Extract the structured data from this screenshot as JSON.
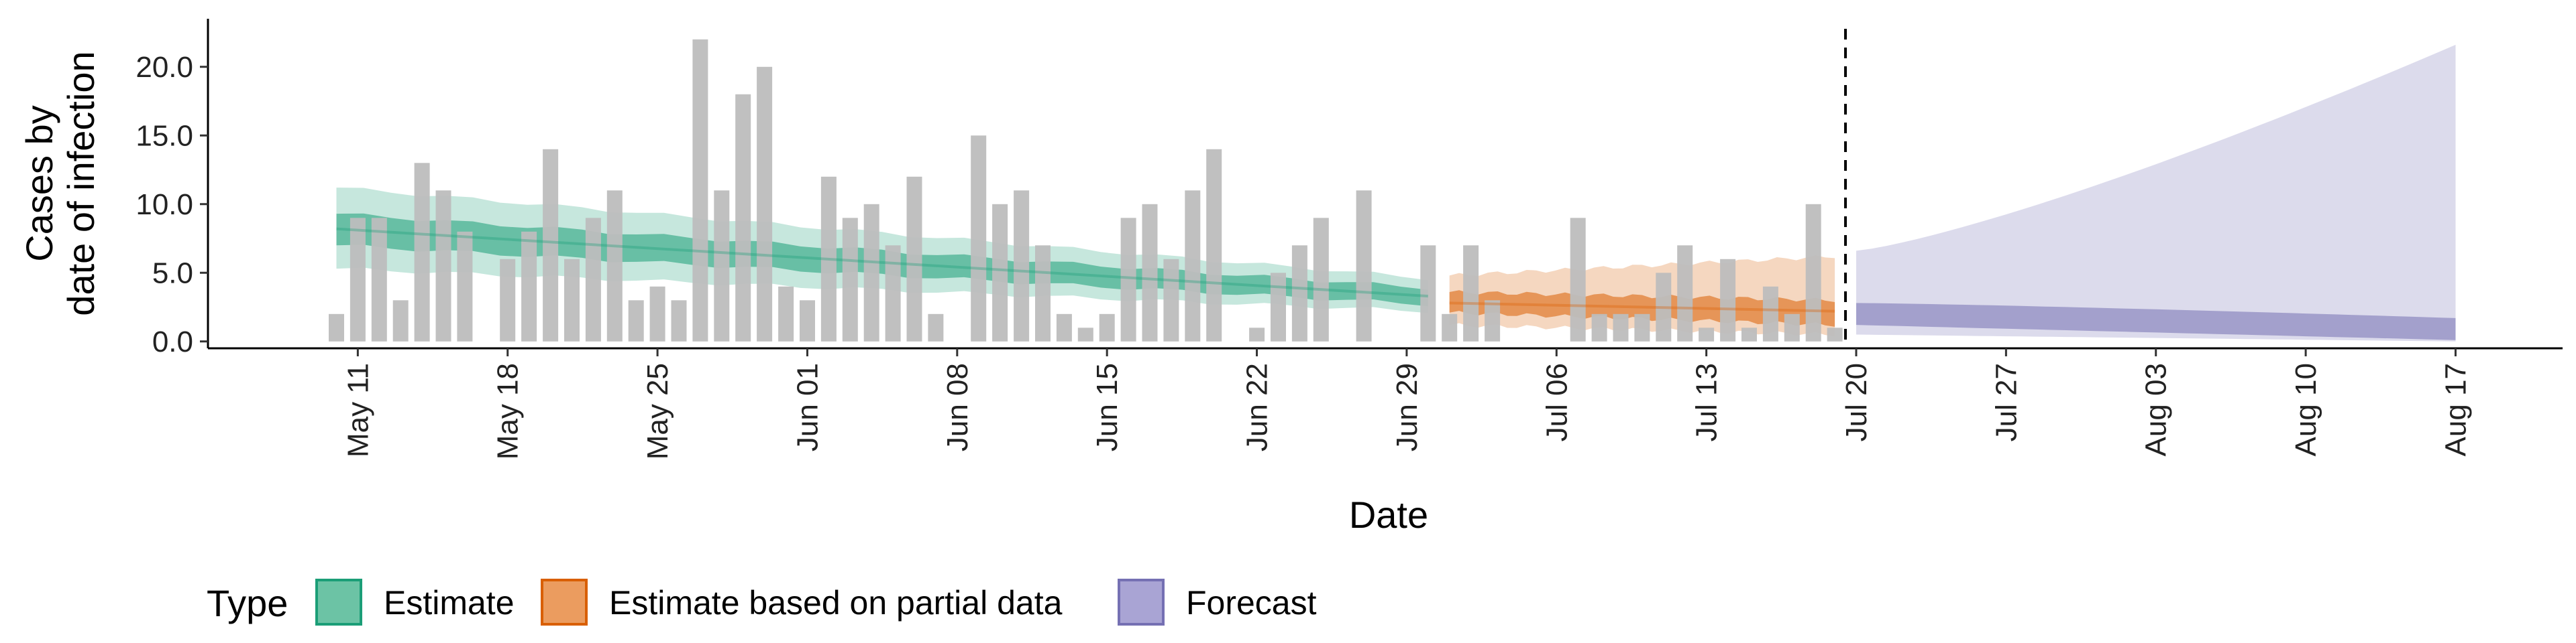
{
  "chart_data": {
    "type": "bar",
    "xlabel": "Date",
    "ylabel_lines": [
      "Cases by",
      "date of infection"
    ],
    "y_ticks": [
      "0.0",
      "5.0",
      "10.0",
      "15.0",
      "20.0"
    ],
    "y_tick_values": [
      0,
      5,
      10,
      15,
      20
    ],
    "ylim": [
      -0.5,
      23.5
    ],
    "xlim": [
      "2020-05-04",
      "2020-08-22"
    ],
    "x_ticks": [
      {
        "date": "2020-05-11",
        "label": "May 11"
      },
      {
        "date": "2020-05-18",
        "label": "May 18"
      },
      {
        "date": "2020-05-25",
        "label": "May 25"
      },
      {
        "date": "2020-06-01",
        "label": "Jun 01"
      },
      {
        "date": "2020-06-08",
        "label": "Jun 08"
      },
      {
        "date": "2020-06-15",
        "label": "Jun 15"
      },
      {
        "date": "2020-06-22",
        "label": "Jun 22"
      },
      {
        "date": "2020-06-29",
        "label": "Jun 29"
      },
      {
        "date": "2020-07-06",
        "label": "Jul 06"
      },
      {
        "date": "2020-07-13",
        "label": "Jul 13"
      },
      {
        "date": "2020-07-20",
        "label": "Jul 20"
      },
      {
        "date": "2020-07-27",
        "label": "Jul 27"
      },
      {
        "date": "2020-08-03",
        "label": "Aug 03"
      },
      {
        "date": "2020-08-10",
        "label": "Aug 10"
      },
      {
        "date": "2020-08-17",
        "label": "Aug 17"
      }
    ],
    "reported_cases": {
      "start_date": "2020-05-10",
      "values": [
        2,
        9,
        9,
        3,
        13,
        11,
        8,
        0,
        6,
        8,
        14,
        6,
        9,
        11,
        3,
        4,
        3,
        22,
        11,
        18,
        20,
        4,
        3,
        12,
        9,
        10,
        7,
        12,
        2,
        0,
        15,
        10,
        11,
        7,
        2,
        1,
        2,
        9,
        10,
        6,
        11,
        14,
        0,
        1,
        5,
        7,
        9,
        0,
        11,
        0,
        0,
        7,
        2,
        7,
        3,
        0,
        0,
        0,
        9,
        2,
        2,
        2,
        5,
        7,
        1,
        6,
        1,
        4,
        2,
        10,
        1
      ],
      "color": "#bdbdbd"
    },
    "forecast_date": "2020-07-19",
    "legend": {
      "title": "Type",
      "entries": [
        {
          "label": "Estimate",
          "fill": "#6cc3a5",
          "stroke": "#1b9e77"
        },
        {
          "label": "Estimate based on partial data",
          "fill": "#eb9c5f",
          "stroke": "#d95f02"
        },
        {
          "label": "Forecast",
          "fill": "#a9a4d4",
          "stroke": "#7570b3"
        }
      ]
    },
    "series": [
      {
        "name": "Estimate",
        "start_date": "2020-05-10",
        "end_date": "2020-06-30",
        "median": [
          8.2,
          3.3
        ],
        "inner_ci": [
          [
            7.0,
            9.3
          ],
          [
            2.7,
            3.9
          ]
        ],
        "outer_ci": [
          [
            5.3,
            11.2
          ],
          [
            2.2,
            4.6
          ]
        ],
        "inner_color": "#1b9e77",
        "inner_opacity": 0.55,
        "outer_color": "#1b9e77",
        "outer_opacity": 0.25
      },
      {
        "name": "Estimate based on partial data",
        "start_date": "2020-07-01",
        "end_date": "2020-07-19",
        "median": [
          2.8,
          2.2
        ],
        "inner_ci": [
          [
            2.1,
            3.6
          ],
          [
            1.2,
            3.0
          ]
        ],
        "outer_ci": [
          [
            1.2,
            4.8
          ],
          [
            0.5,
            6.2
          ]
        ],
        "inner_color": "#d95f02",
        "inner_opacity": 0.55,
        "outer_color": "#d95f02",
        "outer_opacity": 0.25
      },
      {
        "name": "Forecast",
        "start_date": "2020-07-20",
        "end_date": "2020-08-17",
        "inner_ci": [
          [
            1.2,
            2.8
          ],
          [
            0.1,
            1.7
          ]
        ],
        "outer_ci": [
          [
            0.5,
            6.6
          ],
          [
            0.0,
            21.6
          ]
        ],
        "inner_color": "#7570b3",
        "inner_opacity": 0.55,
        "outer_color": "#7570b3",
        "outer_opacity": 0.25
      }
    ]
  }
}
